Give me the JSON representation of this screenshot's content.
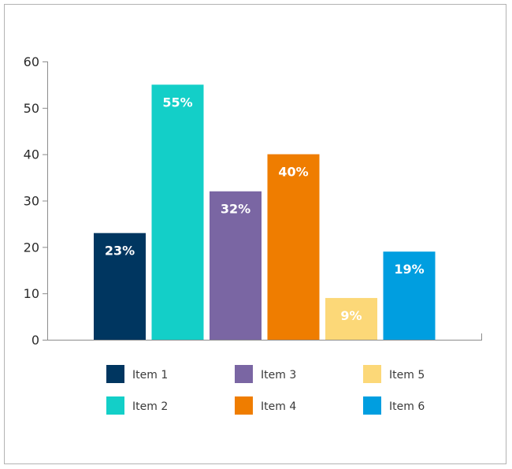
{
  "chart_data": {
    "type": "bar",
    "title": "",
    "xlabel": "",
    "ylabel": "",
    "ylim": [
      0,
      60
    ],
    "yticks": [
      0,
      10,
      20,
      30,
      40,
      50,
      60
    ],
    "grid": false,
    "legend_position": "bottom",
    "categories": [
      "Item 1",
      "Item 2",
      "Item 3",
      "Item 4",
      "Item 5",
      "Item 6"
    ],
    "values": [
      23,
      55,
      32,
      40,
      9,
      19
    ],
    "value_labels": [
      "23%",
      "55%",
      "32%",
      "40%",
      "9%",
      "19%"
    ],
    "colors": [
      "#003660",
      "#13cfc8",
      "#7a66a3",
      "#ef7d00",
      "#fcd878",
      "#009ee0"
    ],
    "legend_order": [
      0,
      2,
      4,
      1,
      3,
      5
    ]
  }
}
